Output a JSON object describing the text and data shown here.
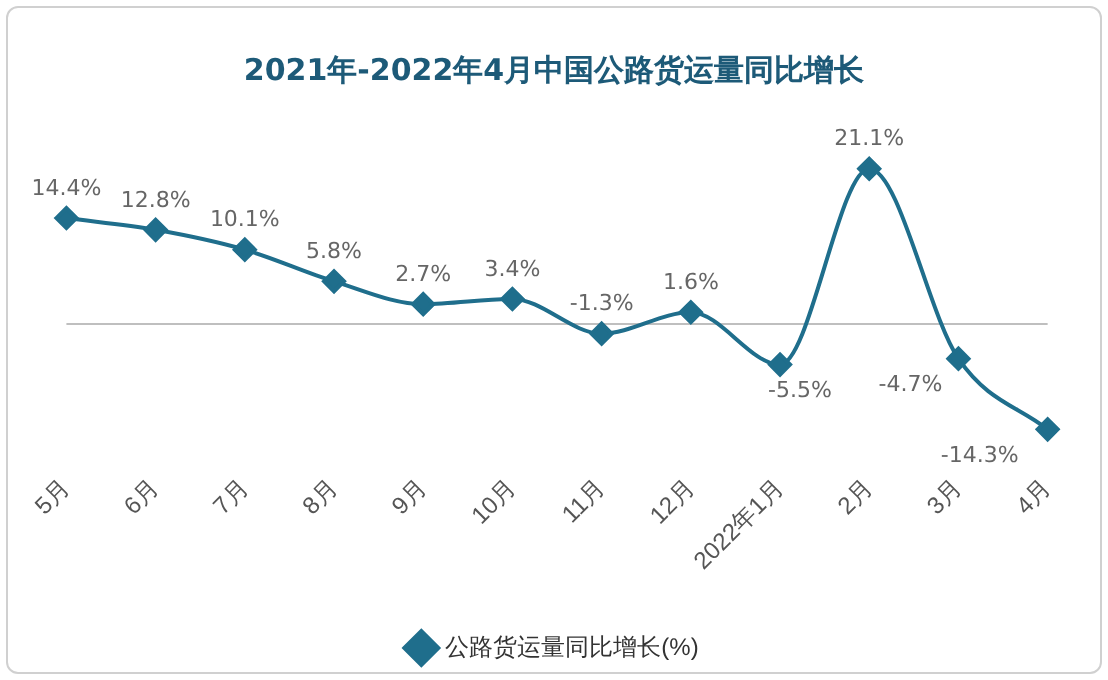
{
  "chart_data": {
    "type": "line",
    "title": "2021年-2022年4月中国公路货运量同比增长",
    "categories": [
      "5月",
      "6月",
      "7月",
      "8月",
      "9月",
      "10月",
      "11月",
      "12月",
      "2022年1月",
      "2月",
      "3月",
      "4月"
    ],
    "series": [
      {
        "name": "公路货运量同比增长(%)",
        "color": "#1f6e8c",
        "values": [
          14.4,
          12.8,
          10.1,
          5.8,
          2.7,
          3.4,
          -1.3,
          1.6,
          -5.5,
          21.1,
          -4.7,
          -14.3
        ],
        "value_labels": [
          "14.4%",
          "12.8%",
          "10.1%",
          "5.8%",
          "2.7%",
          "3.4%",
          "-1.3%",
          "1.6%",
          "-5.5%",
          "21.1%",
          "-4.7%",
          "-14.3%"
        ]
      }
    ],
    "ref_lines": [
      {
        "axis": "y",
        "value": 0,
        "color": "#bfbfbf"
      }
    ],
    "legend": "bottom",
    "marker": "diamond",
    "grid": false
  }
}
